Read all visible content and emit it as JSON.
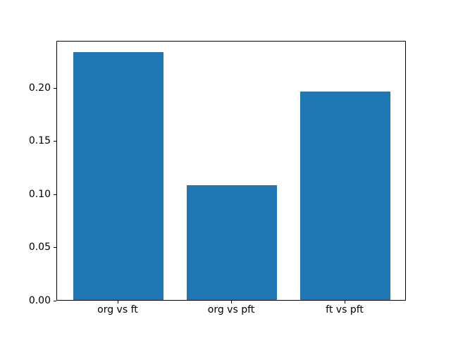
{
  "chart_data": {
    "type": "bar",
    "title": "",
    "categories": [
      "org vs ft",
      "org vs pft",
      "ft vs pft"
    ],
    "values": [
      0.233,
      0.108,
      0.196
    ],
    "xlabel": "",
    "ylabel": "",
    "ylim": [
      0,
      0.244
    ],
    "xlim": [
      -0.54,
      2.54
    ],
    "yticks": [
      0.0,
      0.05,
      0.1,
      0.15,
      0.2
    ],
    "ytick_labels": [
      "0.00",
      "0.05",
      "0.10",
      "0.15",
      "0.20"
    ],
    "bar_width_data_units": 0.8,
    "bar_color": "#1f77b4",
    "background_color": "#ffffff",
    "spine_color": "#000000",
    "text_color": "#000000",
    "grid": false,
    "legend": null
  }
}
